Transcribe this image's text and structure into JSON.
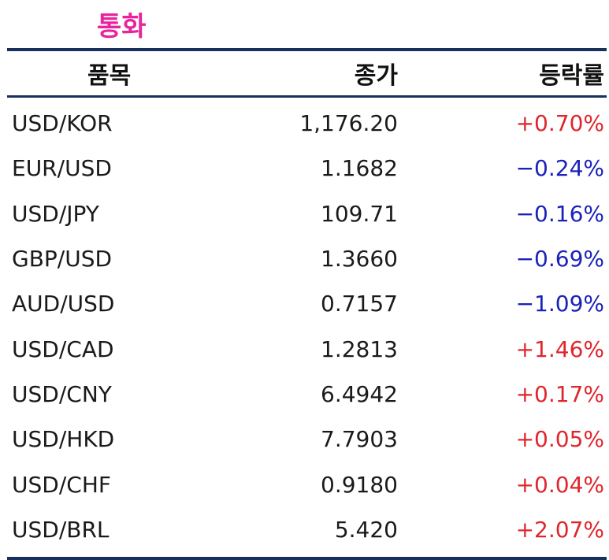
{
  "title": "통화",
  "colors": {
    "title": "#e8239c",
    "rule": "#17305c",
    "positive": "#e0262d",
    "negative": "#1a22b8"
  },
  "header": {
    "name": "품목",
    "close": "종가",
    "change": "등락률"
  },
  "rows": [
    {
      "name": "USD/KOR",
      "close": "1,176.20",
      "change": "+0.70%",
      "dir": "pos"
    },
    {
      "name": "EUR/USD",
      "close": "1.1682",
      "change": "−0.24%",
      "dir": "neg"
    },
    {
      "name": "USD/JPY",
      "close": "109.71",
      "change": "−0.16%",
      "dir": "neg"
    },
    {
      "name": "GBP/USD",
      "close": "1.3660",
      "change": "−0.69%",
      "dir": "neg"
    },
    {
      "name": "AUD/USD",
      "close": "0.7157",
      "change": "−1.09%",
      "dir": "neg"
    },
    {
      "name": "USD/CAD",
      "close": "1.2813",
      "change": "+1.46%",
      "dir": "pos"
    },
    {
      "name": "USD/CNY",
      "close": "6.4942",
      "change": "+0.17%",
      "dir": "pos"
    },
    {
      "name": "USD/HKD",
      "close": "7.7903",
      "change": "+0.05%",
      "dir": "pos"
    },
    {
      "name": "USD/CHF",
      "close": "0.9180",
      "change": "+0.04%",
      "dir": "pos"
    },
    {
      "name": "USD/BRL",
      "close": "5.420",
      "change": "+2.07%",
      "dir": "pos"
    }
  ]
}
